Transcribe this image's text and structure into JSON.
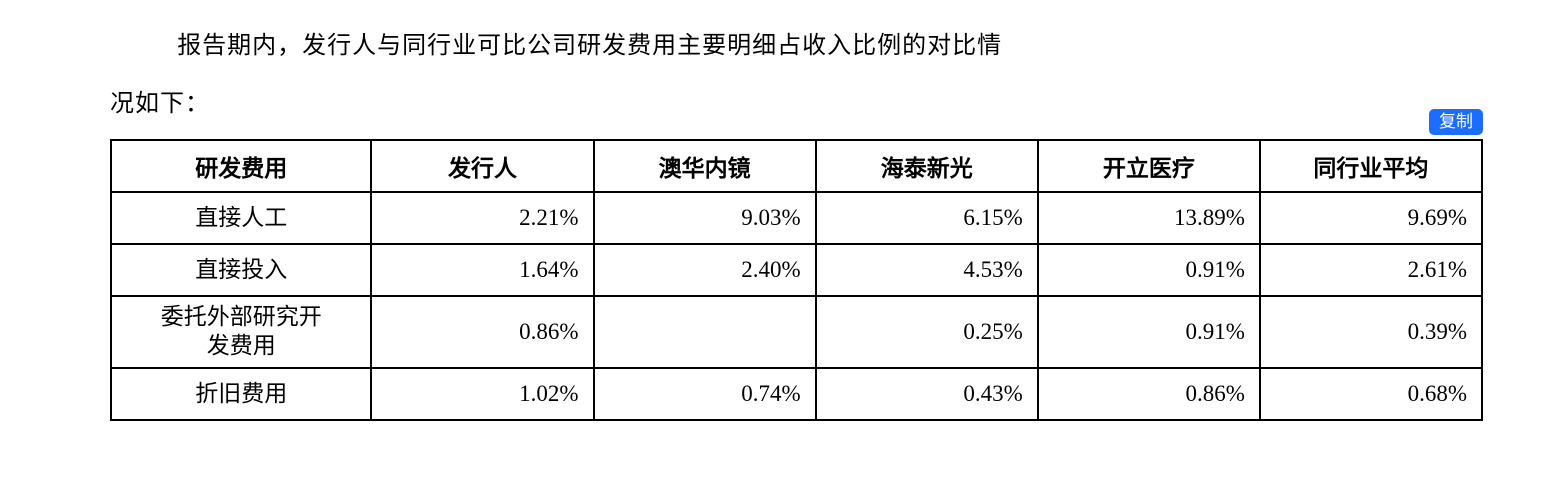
{
  "intro": {
    "line1": "报告期内，发行人与同行业可比公司研发费用主要明细占收入比例的对比情",
    "line2": "况如下："
  },
  "copy_button_label": "复制",
  "table": {
    "columns": [
      "研发费用",
      "发行人",
      "澳华内镜",
      "海泰新光",
      "开立医疗",
      "同行业平均"
    ],
    "col_widths_percent": [
      19,
      16.2,
      16.2,
      16.2,
      16.2,
      16.2
    ],
    "rows": [
      {
        "label": "直接人工",
        "values": [
          "2.21%",
          "9.03%",
          "6.15%",
          "13.89%",
          "9.69%"
        ]
      },
      {
        "label": "直接投入",
        "values": [
          "1.64%",
          "2.40%",
          "4.53%",
          "0.91%",
          "2.61%"
        ]
      },
      {
        "label": "委托外部研究开\n发费用",
        "values": [
          "0.86%",
          "",
          "0.25%",
          "0.91%",
          "0.39%"
        ]
      },
      {
        "label": "折旧费用",
        "values": [
          "1.02%",
          "0.74%",
          "0.43%",
          "0.86%",
          "0.68%"
        ]
      }
    ],
    "border_color": "#000000",
    "header_fontweight": "bold",
    "font_size_pt": 17,
    "cell_align_values": "right",
    "cell_align_labels": "center"
  },
  "colors": {
    "background": "#ffffff",
    "text": "#000000",
    "button_bg": "#1a6dff",
    "button_text": "#ffffff"
  }
}
